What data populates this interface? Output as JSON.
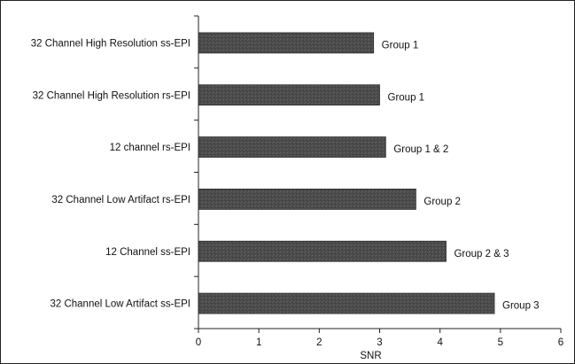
{
  "chart_data": {
    "type": "bar",
    "orientation": "horizontal",
    "categories": [
      "32 Channel High Resolution ss-EPI",
      "32 Channel High Resolution rs-EPI",
      "12 channel rs-EPI",
      "32 Channel Low Artifact rs-EPI",
      "12 Channel ss-EPI",
      "32 Channel Low Artifact ss-EPI"
    ],
    "values": [
      2.9,
      3.0,
      3.1,
      3.6,
      4.1,
      4.9
    ],
    "data_labels": [
      "Group 1",
      "Group 1",
      "Group 1 & 2",
      "Group 2",
      "Group 2 & 3",
      "Group 3"
    ],
    "xlabel": "SNR",
    "ylabel": "",
    "title": "",
    "xlim": [
      0,
      6
    ],
    "xticks": [
      "0",
      "1",
      "2",
      "3",
      "4",
      "5",
      "6"
    ],
    "grid": false,
    "bar_color": "#4a4a4a"
  }
}
